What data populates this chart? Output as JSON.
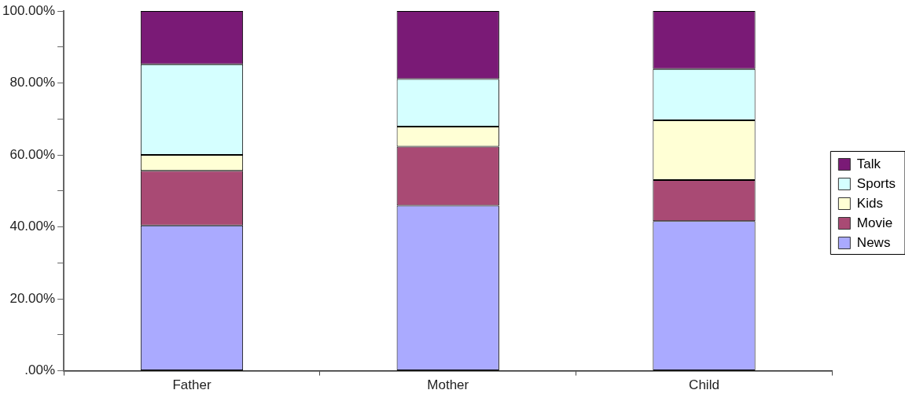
{
  "chart_data": {
    "type": "bar",
    "stacked": true,
    "categories": [
      "Father",
      "Mother",
      "Child"
    ],
    "series": [
      {
        "name": "News",
        "color": "#aaaaff",
        "values": [
          40.4,
          45.9,
          41.6
        ]
      },
      {
        "name": "Movie",
        "color": "#a94a74",
        "values": [
          15.2,
          16.4,
          11.4
        ]
      },
      {
        "name": "Kids",
        "color": "#ffffd5",
        "values": [
          4.4,
          5.6,
          16.6
        ]
      },
      {
        "name": "Sports",
        "color": "#d5ffff",
        "values": [
          25.2,
          13.2,
          14.3
        ]
      },
      {
        "name": "Talk",
        "color": "#7a1a76",
        "values": [
          14.8,
          18.9,
          16.1
        ]
      }
    ],
    "ylim": [
      0,
      100
    ],
    "yticks": [
      {
        "value": 0,
        "label": ".00%"
      },
      {
        "value": 10,
        "label": null
      },
      {
        "value": 20,
        "label": "20.00%"
      },
      {
        "value": 30,
        "label": null
      },
      {
        "value": 40,
        "label": "40.00%"
      },
      {
        "value": 50,
        "label": null
      },
      {
        "value": 60,
        "label": "60.00%"
      },
      {
        "value": 70,
        "label": null
      },
      {
        "value": 80,
        "label": "80.00%"
      },
      {
        "value": 90,
        "label": null
      },
      {
        "value": 100,
        "label": "100.00%"
      }
    ],
    "grid": false,
    "legend": "right"
  }
}
